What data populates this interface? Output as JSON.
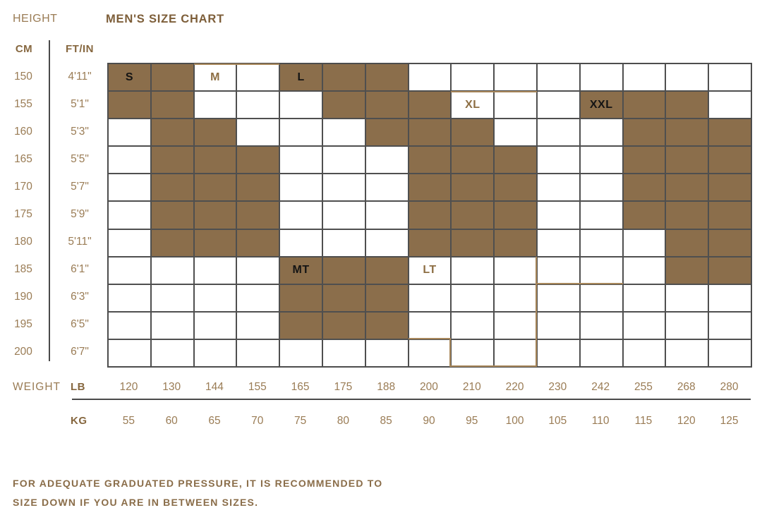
{
  "header": {
    "height_label": "HEIGHT",
    "title": "MEN'S SIZE CHART",
    "cm_label": "CM",
    "ftin_label": "FT/IN",
    "weight_label": "WEIGHT",
    "lb_label": "LB",
    "kg_label": "KG"
  },
  "footer": {
    "line1": "FOR ADEQUATE GRADUATED PRESSURE, IT IS RECOMMENDED TO",
    "line2": "SIZE DOWN IF YOU ARE IN BETWEEN SIZES."
  },
  "colors": {
    "cell_brown": "#8b6e4b",
    "grid_border": "#4a4a4a",
    "tan_line": "#a8875b",
    "accent_dark": "#7d5e39",
    "accent": "#9a7c55",
    "label_black": "#141414",
    "label_tan": "#8d6e43"
  },
  "chart_data": {
    "type": "heatmap",
    "title": "MEN'S SIZE CHART",
    "x_axis_label": "WEIGHT",
    "y_axis_label": "HEIGHT",
    "rows_cm": [
      150,
      155,
      160,
      165,
      170,
      175,
      180,
      185,
      190,
      195,
      200
    ],
    "rows_ftin": [
      "4'11\"",
      "5'1\"",
      "5'3\"",
      "5'5\"",
      "5'7\"",
      "5'9\"",
      "5'11\"",
      "6'1\"",
      "6'3\"",
      "6'5\"",
      "6'7\""
    ],
    "cols_lb": [
      120,
      130,
      144,
      155,
      165,
      175,
      188,
      200,
      210,
      220,
      230,
      242,
      255,
      268,
      280
    ],
    "cols_kg": [
      55,
      60,
      65,
      70,
      75,
      80,
      85,
      90,
      95,
      100,
      105,
      110,
      115,
      120,
      125
    ],
    "fill_matrix": [
      [
        1,
        1,
        0,
        0,
        1,
        1,
        1,
        0,
        0,
        0,
        0,
        0,
        0,
        0,
        0
      ],
      [
        1,
        1,
        0,
        0,
        0,
        1,
        1,
        1,
        0,
        0,
        0,
        1,
        1,
        1,
        0
      ],
      [
        0,
        1,
        1,
        0,
        0,
        0,
        1,
        1,
        1,
        0,
        0,
        0,
        1,
        1,
        1
      ],
      [
        0,
        1,
        1,
        1,
        0,
        0,
        0,
        1,
        1,
        1,
        0,
        0,
        1,
        1,
        1
      ],
      [
        0,
        1,
        1,
        1,
        0,
        0,
        0,
        1,
        1,
        1,
        0,
        0,
        1,
        1,
        1
      ],
      [
        0,
        1,
        1,
        1,
        0,
        0,
        0,
        1,
        1,
        1,
        0,
        0,
        1,
        1,
        1
      ],
      [
        0,
        1,
        1,
        1,
        0,
        0,
        0,
        1,
        1,
        1,
        0,
        0,
        0,
        1,
        1
      ],
      [
        0,
        0,
        0,
        0,
        1,
        1,
        1,
        0,
        0,
        0,
        0,
        0,
        0,
        1,
        1
      ],
      [
        0,
        0,
        0,
        0,
        1,
        1,
        1,
        0,
        0,
        0,
        0,
        0,
        0,
        0,
        0
      ],
      [
        0,
        0,
        0,
        0,
        1,
        1,
        1,
        0,
        0,
        0,
        0,
        0,
        0,
        0,
        0
      ],
      [
        0,
        0,
        0,
        0,
        0,
        0,
        0,
        0,
        0,
        0,
        0,
        0,
        0,
        0,
        0
      ]
    ],
    "size_labels": [
      {
        "label": "S",
        "row": 1,
        "col": 1,
        "style": "dark"
      },
      {
        "label": "M",
        "row": 1,
        "col": 3,
        "style": "tan"
      },
      {
        "label": "L",
        "row": 1,
        "col": 5,
        "style": "dark"
      },
      {
        "label": "XL",
        "row": 2,
        "col": 9,
        "style": "tan"
      },
      {
        "label": "XXL",
        "row": 2,
        "col": 12,
        "style": "dark"
      },
      {
        "label": "MT",
        "row": 8,
        "col": 5,
        "style": "dark"
      },
      {
        "label": "LT",
        "row": 8,
        "col": 8,
        "style": "tan"
      }
    ],
    "tan_edges": [
      {
        "r": 1,
        "c": 3,
        "side": "top"
      },
      {
        "r": 1,
        "c": 4,
        "side": "top"
      },
      {
        "r": 2,
        "c": 9,
        "side": "top"
      },
      {
        "r": 2,
        "c": 10,
        "side": "top"
      },
      {
        "r": 8,
        "c": 11,
        "side": "bottom"
      },
      {
        "r": 8,
        "c": 12,
        "side": "bottom"
      },
      {
        "r": 8,
        "c": 10,
        "side": "right"
      },
      {
        "r": 9,
        "c": 10,
        "side": "right"
      },
      {
        "r": 10,
        "c": 10,
        "side": "right"
      },
      {
        "r": 11,
        "c": 10,
        "side": "right"
      },
      {
        "r": 10,
        "c": 8,
        "side": "bottom"
      },
      {
        "r": 11,
        "c": 8,
        "side": "right"
      },
      {
        "r": 11,
        "c": 9,
        "side": "bottom"
      },
      {
        "r": 11,
        "c": 10,
        "side": "bottom"
      }
    ]
  }
}
